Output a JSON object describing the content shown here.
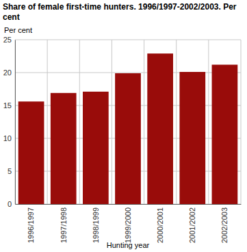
{
  "chart_data": {
    "type": "bar",
    "title": "Share of female first-time hunters. 1996/1997-2002/2003. Per cent",
    "xlabel": "Hunting year",
    "ylabel": "Per cent",
    "categories": [
      "1996/1997",
      "1997/1998",
      "1998/1999",
      "1999/2000",
      "2000/2001",
      "2001/2002",
      "2002/2003"
    ],
    "values": [
      15.6,
      16.9,
      17.1,
      19.9,
      22.9,
      20.1,
      21.2
    ],
    "color": "#990c0a",
    "ylim": [
      0,
      25
    ],
    "yticks": [
      0,
      5,
      10,
      15,
      20,
      25
    ],
    "grid": true
  }
}
